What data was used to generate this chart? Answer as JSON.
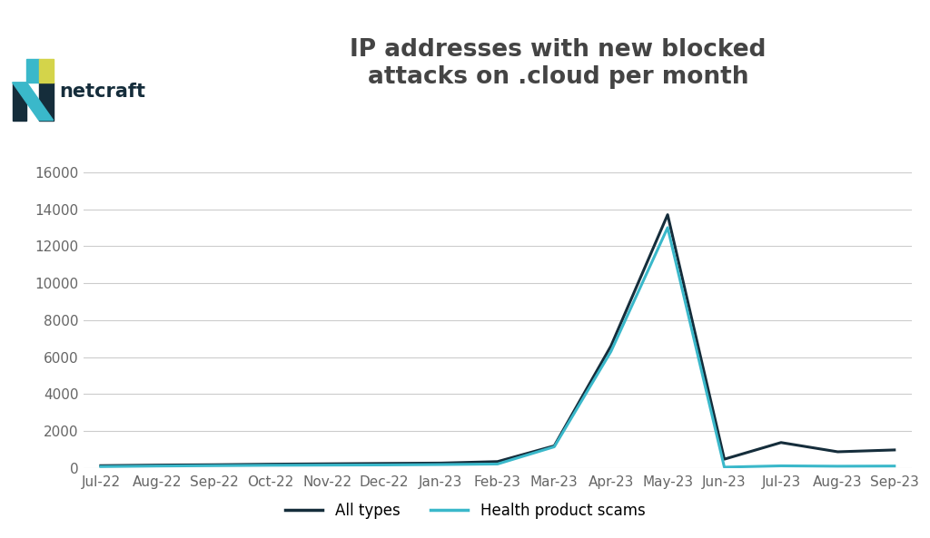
{
  "title": "IP addresses with new blocked\nattacks on .cloud per month",
  "x_labels": [
    "Jul-22",
    "Aug-22",
    "Sep-22",
    "Oct-22",
    "Nov-22",
    "Dec-22",
    "Jan-23",
    "Feb-23",
    "Mar-23",
    "Apr-23",
    "May-23",
    "Jun-23",
    "Jul-23",
    "Aug-23",
    "Sep-23"
  ],
  "all_types": [
    130,
    160,
    180,
    210,
    230,
    250,
    270,
    350,
    1200,
    6600,
    13700,
    480,
    1380,
    880,
    980
  ],
  "health_scams": [
    80,
    110,
    130,
    150,
    160,
    170,
    190,
    220,
    1150,
    6300,
    13000,
    50,
    120,
    100,
    110
  ],
  "color_all": "#152d3b",
  "color_health": "#3ab8ca",
  "ylim_min": 0,
  "ylim_max": 16000,
  "yticks": [
    0,
    2000,
    4000,
    6000,
    8000,
    10000,
    12000,
    14000,
    16000
  ],
  "grid_color": "#cccccc",
  "title_fontsize": 19,
  "tick_fontsize": 11,
  "tick_color": "#666666",
  "legend_label_all": "All types",
  "legend_label_health": "Health product scams",
  "logo_dark": "#152d3b",
  "logo_teal": "#3ab8ca",
  "logo_yellow": "#d4d44a",
  "text_color": "#444444",
  "bg_color": "#ffffff",
  "line_width": 2.2
}
